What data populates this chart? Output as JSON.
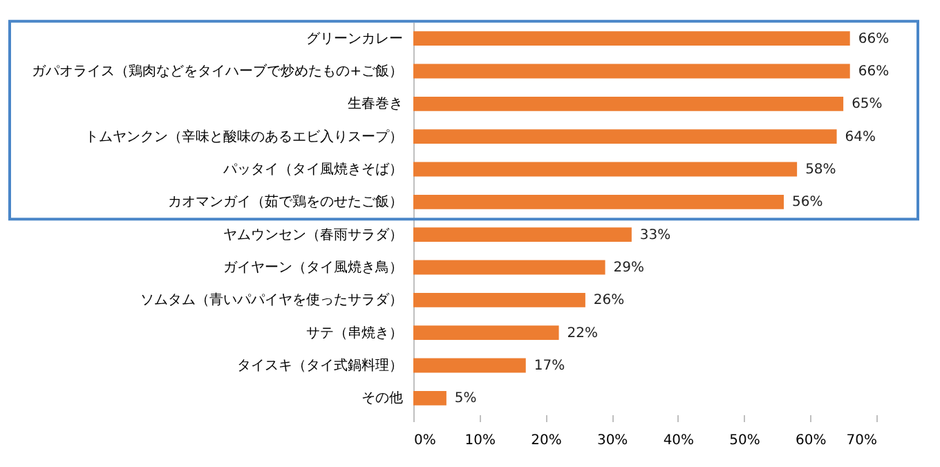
{
  "chart_data": {
    "type": "bar",
    "orientation": "horizontal",
    "categories": [
      "グリーンカレー",
      "ガパオライス（鶏肉などをタイハーブで炒めたもの+ご飯）",
      "生春巻き",
      "トムヤンクン（辛味と酸味のあるエビ入りスープ）",
      "パッタイ（タイ風焼きそば）",
      "カオマンガイ（茹で鶏をのせたご飯）",
      "ヤムウンセン（春雨サラダ）",
      "ガイヤーン（タイ風焼き鳥）",
      "ソムタム（青いパパイヤを使ったサラダ）",
      "サテ（串焼き）",
      "タイスキ（タイ式鍋料理）",
      "その他"
    ],
    "values": [
      66,
      66,
      65,
      64,
      58,
      56,
      33,
      29,
      26,
      22,
      17,
      5
    ],
    "value_labels": [
      "66%",
      "66%",
      "65%",
      "64%",
      "58%",
      "56%",
      "33%",
      "29%",
      "26%",
      "22%",
      "17%",
      "5%"
    ],
    "color": "#ed7d31",
    "xlim": [
      0,
      70
    ],
    "xticks": [
      {
        "value": 0,
        "label": "0%"
      },
      {
        "value": 10,
        "label": "10%"
      },
      {
        "value": 20,
        "label": "20%"
      },
      {
        "value": 30,
        "label": "30%"
      },
      {
        "value": 40,
        "label": "40%"
      },
      {
        "value": 50,
        "label": "50%"
      },
      {
        "value": 60,
        "label": "60%"
      },
      {
        "value": 70,
        "label": "70%"
      }
    ],
    "grid": false
  }
}
